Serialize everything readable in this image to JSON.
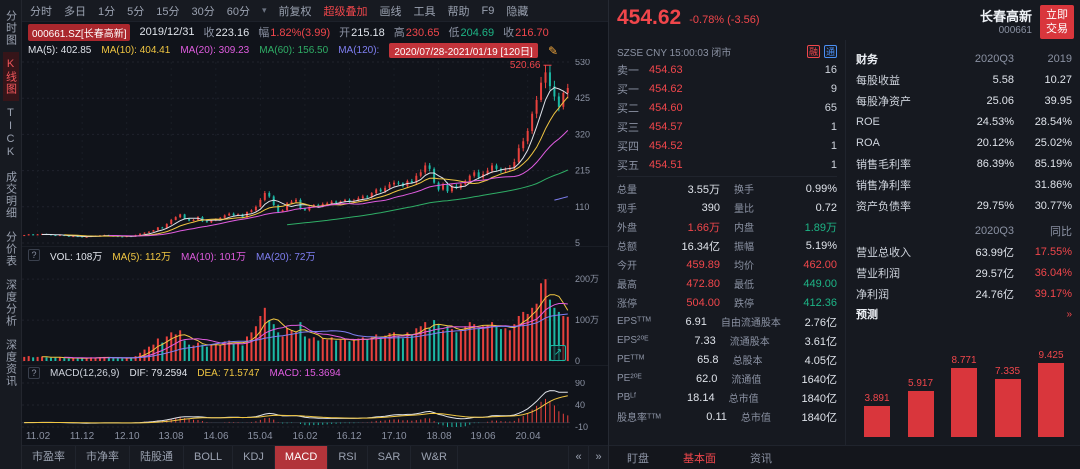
{
  "colors": {
    "up": "#e8413d",
    "down": "#1cb8a5",
    "red_text": "#f0464b",
    "green_text": "#1db586",
    "yellow": "#f0c642",
    "magenta": "#e05ce0",
    "purple": "#7f7ff2",
    "white": "#dfe3ea",
    "ma60_green": "#2fae66",
    "accent": "#d9363c",
    "blue": "#4a90f5"
  },
  "left_sidebar": {
    "items": [
      {
        "id": "timeline",
        "label": "分时图",
        "active": false
      },
      {
        "id": "kline",
        "label": "K线图",
        "active": true
      },
      {
        "id": "tick",
        "label": "TICK",
        "active": false
      },
      {
        "id": "trade-detail",
        "label": "成交明细",
        "active": false
      },
      {
        "id": "price-table",
        "label": "分价表",
        "active": false
      },
      {
        "id": "depth-analysis",
        "label": "深度分析",
        "active": false
      },
      {
        "id": "depth-news",
        "label": "深度资讯",
        "active": false
      }
    ]
  },
  "toolbar": {
    "periods": [
      "分时",
      "多日",
      "1分",
      "5分",
      "15分",
      "30分",
      "60分"
    ],
    "chevron": "▾",
    "menus": [
      {
        "label": "前复权",
        "red": false
      },
      {
        "label": "超级叠加",
        "red": true
      },
      {
        "label": "画线",
        "red": false
      },
      {
        "label": "工具",
        "red": false
      },
      {
        "label": "帮助",
        "red": false
      },
      {
        "label": "F9",
        "red": false
      },
      {
        "label": "隐藏",
        "red": false
      }
    ]
  },
  "info_bar": {
    "symbol": "000661.SZ[长春高新]",
    "date": "2019/12/31",
    "fields": [
      {
        "label": "收",
        "value": "223.16",
        "c": "w"
      },
      {
        "label": "幅",
        "value": "1.82%(3.99)",
        "c": "r"
      },
      {
        "label": "开",
        "value": "215.18",
        "c": "w"
      },
      {
        "label": "高",
        "value": "230.65",
        "c": "r"
      },
      {
        "label": "低",
        "value": "204.69",
        "c": "g"
      },
      {
        "label": "收",
        "value": "216.70",
        "c": "r"
      }
    ]
  },
  "ma_bar": {
    "items": [
      {
        "t": "MA(5): 402.85",
        "c": "#dfe3ea"
      },
      {
        "t": "MA(10): 404.41",
        "c": "#f0c642"
      },
      {
        "t": "MA(20): 309.23",
        "c": "#e05ce0"
      },
      {
        "t": "MA(60): 156.50",
        "c": "#2fae66"
      },
      {
        "t": "MA(120):",
        "c": "#7f7ff2"
      }
    ],
    "range_badge": "2020/07/28-2021/01/19 [120日]",
    "brush_icon": "✎"
  },
  "vol_bar": {
    "help_icon": "?",
    "items": [
      {
        "t": "VOL: 108万",
        "c": "#dfe3ea"
      },
      {
        "t": "MA(5): 112万",
        "c": "#f0c642"
      },
      {
        "t": "MA(10): 101万",
        "c": "#e05ce0"
      },
      {
        "t": "MA(20): 72万",
        "c": "#7f7ff2"
      }
    ],
    "expand_icon": "↗"
  },
  "macd_bar": {
    "help_icon": "?",
    "title": "MACD(12,26,9)",
    "items": [
      {
        "t": "DIF: 79.2594",
        "c": "#dfe3ea"
      },
      {
        "t": "DEA: 71.5747",
        "c": "#f0c642"
      },
      {
        "t": "MACD: 15.3694",
        "c": "#e05ce0"
      }
    ]
  },
  "bottom_tabs": {
    "items": [
      "市盈率",
      "市净率",
      "陆股通",
      "BOLL",
      "KDJ",
      "MACD",
      "RSI",
      "SAR",
      "W&R"
    ],
    "active": "MACD",
    "arrows": [
      "«",
      "»"
    ]
  },
  "quote": {
    "price": "454.62",
    "change": "-0.78% (-3.56)",
    "name": "长春高新",
    "code": "000661",
    "trade_button": [
      "立即",
      "交易"
    ],
    "status": "SZSE CNY 15:00:03 闭市",
    "badges": [
      {
        "label": "融",
        "color": "#f0464b"
      },
      {
        "label": "通",
        "color": "#4a90f5"
      }
    ],
    "order_book": [
      {
        "label": "卖一",
        "price": "454.63",
        "vol": "16"
      },
      {
        "label": "买一",
        "price": "454.62",
        "vol": "9"
      },
      {
        "label": "买二",
        "price": "454.60",
        "vol": "65"
      },
      {
        "label": "买三",
        "price": "454.57",
        "vol": "1"
      },
      {
        "label": "买四",
        "price": "454.52",
        "vol": "1"
      },
      {
        "label": "买五",
        "price": "454.51",
        "vol": "1"
      }
    ],
    "stats": [
      [
        "总量",
        "3.55万",
        "w",
        "换手",
        "0.99%",
        "w"
      ],
      [
        "现手",
        "390",
        "w",
        "量比",
        "0.72",
        "w"
      ],
      [
        "外盘",
        "1.66万",
        "r",
        "内盘",
        "1.89万",
        "g"
      ],
      [
        "总额",
        "16.34亿",
        "w",
        "振幅",
        "5.19%",
        "w"
      ],
      [
        "今开",
        "459.89",
        "r",
        "均价",
        "462.00",
        "r"
      ],
      [
        "最高",
        "472.80",
        "r",
        "最低",
        "449.00",
        "g"
      ],
      [
        "涨停",
        "504.00",
        "r",
        "跌停",
        "412.36",
        "g"
      ],
      [
        "EPSᵀᵀᴹ",
        "6.91",
        "w",
        "自由流通股本",
        "2.76亿",
        "w"
      ],
      [
        "EPS²⁰ᴱ",
        "7.33",
        "w",
        "流通股本",
        "3.61亿",
        "w"
      ],
      [
        "PEᵀᵀᴹ",
        "65.8",
        "w",
        "总股本",
        "4.05亿",
        "w"
      ],
      [
        "PE²⁰ᴱ",
        "62.0",
        "w",
        "流通值",
        "1640亿",
        "w"
      ],
      [
        "PBᴸᶠ",
        "18.14",
        "w",
        "总市值",
        "1840亿",
        "w"
      ],
      [
        "股息率ᵀᵀᴹ",
        "0.11",
        "w",
        "总市值",
        "1840亿",
        "w"
      ]
    ]
  },
  "fin": {
    "header": [
      "财务",
      "2020Q3",
      "2019"
    ],
    "rows": [
      [
        "每股收益",
        "5.58",
        "10.27"
      ],
      [
        "每股净资产",
        "25.06",
        "39.95"
      ],
      [
        "ROE",
        "24.53%",
        "28.54%"
      ],
      [
        "ROA",
        "20.12%",
        "25.02%"
      ],
      [
        "销售毛利率",
        "86.39%",
        "85.19%"
      ],
      [
        "销售净利率",
        "",
        "31.86%"
      ],
      [
        "资产负债率",
        "29.75%",
        "30.77%"
      ]
    ],
    "growth_header": [
      "",
      "2020Q3",
      "同比"
    ],
    "growth_rows": [
      [
        "营业总收入",
        "63.99亿",
        "17.55%"
      ],
      [
        "营业利润",
        "29.57亿",
        "36.04%"
      ],
      [
        "净利润",
        "24.76亿",
        "39.17%"
      ]
    ]
  },
  "forecast": {
    "title": "预测",
    "more_icon": "»",
    "values": [
      "3.891",
      "5.917",
      "8.771",
      "7.335",
      "9.425"
    ]
  },
  "right_tabs": {
    "items": [
      "盯盘",
      "基本面",
      "资讯"
    ],
    "active": "基本面"
  },
  "chart_data": {
    "type": "candlestick",
    "symbol": "000661.SZ",
    "name": "长春高新",
    "period": "月K",
    "ylim": [
      5,
      530
    ],
    "y_ticks": [
      530,
      425,
      320,
      215,
      110,
      5
    ],
    "vol_max": 220,
    "vol_ticks": [
      {
        "v": 200,
        "label": "200万"
      },
      {
        "v": 100,
        "label": "100万"
      },
      {
        "v": 0,
        "label": "0"
      }
    ],
    "macd_ticks": [
      90,
      40,
      -10
    ],
    "x_labels": [
      "11.02",
      "11.12",
      "12.10",
      "13.08",
      "14.06",
      "15.04",
      "16.02",
      "16.12",
      "17.10",
      "18.08",
      "19.06",
      "20.04"
    ],
    "x_label_start": 3,
    "x_label_step": 10,
    "peak_label": "520.66",
    "last_close": 454.62,
    "closes": [
      28,
      30,
      29,
      30,
      31,
      30,
      28,
      27,
      28,
      26,
      24,
      25,
      24,
      22,
      23,
      25,
      26,
      27,
      28,
      26,
      25,
      24,
      23,
      25,
      24,
      28,
      32,
      35,
      38,
      42,
      50,
      48,
      60,
      72,
      80,
      88,
      75,
      70,
      72,
      80,
      68,
      65,
      70,
      75,
      78,
      85,
      90,
      85,
      88,
      80,
      95,
      100,
      110,
      130,
      150,
      140,
      115,
      95,
      100,
      120,
      125,
      130,
      105,
      100,
      110,
      115,
      112,
      118,
      120,
      125,
      122,
      126,
      130,
      125,
      128,
      135,
      140,
      138,
      150,
      160,
      155,
      165,
      175,
      180,
      178,
      170,
      185,
      180,
      200,
      210,
      230,
      220,
      180,
      160,
      175,
      155,
      170,
      165,
      175,
      185,
      200,
      210,
      195,
      205,
      215,
      230,
      220,
      215,
      218,
      223,
      240,
      280,
      300,
      330,
      380,
      420,
      470,
      500,
      460,
      430,
      400,
      440,
      454.62
    ],
    "volumes": [
      10,
      12,
      9,
      10,
      11,
      9,
      8,
      8,
      9,
      7,
      6,
      7,
      6,
      8,
      7,
      9,
      8,
      9,
      10,
      8,
      7,
      7,
      6,
      8,
      7,
      12,
      20,
      28,
      35,
      40,
      55,
      45,
      60,
      70,
      65,
      75,
      50,
      40,
      38,
      45,
      40,
      35,
      38,
      42,
      40,
      48,
      50,
      42,
      45,
      38,
      60,
      70,
      85,
      110,
      130,
      100,
      90,
      70,
      60,
      80,
      75,
      70,
      95,
      60,
      55,
      58,
      50,
      55,
      52,
      58,
      50,
      52,
      55,
      48,
      50,
      55,
      58,
      52,
      60,
      65,
      58,
      62,
      68,
      70,
      62,
      55,
      70,
      65,
      80,
      85,
      95,
      80,
      100,
      90,
      75,
      85,
      78,
      70,
      75,
      85,
      95,
      90,
      80,
      85,
      88,
      95,
      85,
      78,
      80,
      75,
      90,
      110,
      120,
      115,
      130,
      140,
      190,
      200,
      150,
      130,
      120,
      110,
      108
    ]
  }
}
